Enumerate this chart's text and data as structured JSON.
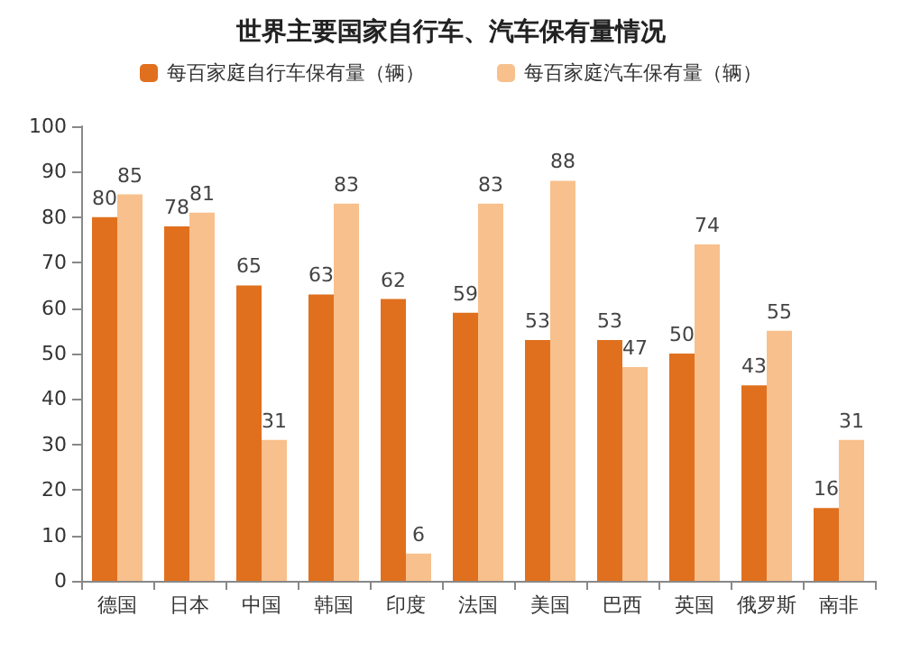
{
  "chart_data": {
    "type": "bar",
    "title": "世界主要国家自行车、汽车保有量情况",
    "categories": [
      "德国",
      "日本",
      "中国",
      "韩国",
      "印度",
      "法国",
      "美国",
      "巴西",
      "英国",
      "俄罗斯",
      "南非"
    ],
    "series": [
      {
        "name": "每百家庭自行车保有量（辆）",
        "color": "#e0701e",
        "values": [
          80,
          78,
          65,
          63,
          62,
          59,
          53,
          53,
          50,
          43,
          16
        ]
      },
      {
        "name": "每百家庭汽车保有量（辆）",
        "color": "#f8c08c",
        "values": [
          85,
          81,
          31,
          83,
          6,
          83,
          88,
          47,
          74,
          55,
          31
        ]
      }
    ],
    "ylim": [
      0,
      100
    ],
    "yticks": [
      0,
      10,
      20,
      30,
      40,
      50,
      60,
      70,
      80,
      90,
      100
    ],
    "grid": false,
    "legend": "top",
    "data_labels": true
  }
}
